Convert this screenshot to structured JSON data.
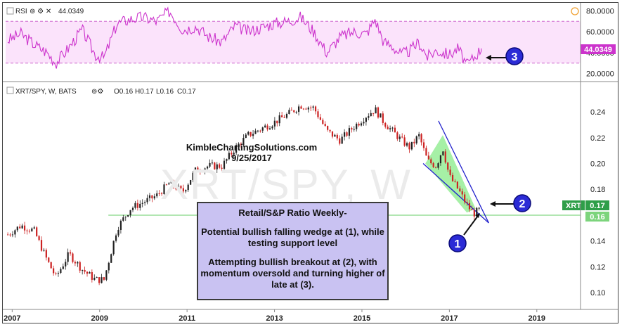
{
  "rsi_panel": {
    "label": "RSI",
    "value_text": "44.0349",
    "badge": "44.0349",
    "ticks": [
      "80.0000",
      "60.0000",
      "40.0000",
      "20.0000"
    ],
    "tick_values": [
      80,
      60,
      40,
      20
    ],
    "upper_band": 70,
    "lower_band": 30,
    "range": [
      15,
      85
    ],
    "color": "#cc33cc",
    "band_fill": "#fbe3fb"
  },
  "main_panel": {
    "legend": "XRT/SPY, W, BATS",
    "open": "O0.16",
    "high": "H0.17",
    "low": "L0.16",
    "close": "C0.17",
    "watermark": "XRT/SPY, W",
    "symbol_badge": "XRT",
    "price_badge": "0.17",
    "support_badge": "0.16",
    "support_level": 0.16,
    "ticks": [
      "0.24",
      "0.22",
      "0.20",
      "0.18",
      "0.16",
      "0.14",
      "0.12",
      "0.10"
    ],
    "tick_values": [
      0.24,
      0.22,
      0.2,
      0.18,
      0.16,
      0.14,
      0.12,
      0.1
    ],
    "range": [
      0.087,
      0.252
    ],
    "x_labels": [
      "2007",
      "2009",
      "2011",
      "2013",
      "2015",
      "2017",
      "2019"
    ],
    "up_color": "#222222",
    "down_color": "#cc2222"
  },
  "brand": {
    "name": "KimbleChartingSolutions.com",
    "date": "9/25/2017"
  },
  "note": {
    "title": "Retail/S&P Ratio Weekly-",
    "line1": "Potential bullish falling wedge at (1), while testing support level",
    "line2": "Attempting bullish breakout at (2), with momentum oversold and turning higher of late at (3)."
  },
  "markers": [
    {
      "id": "1",
      "label": "1"
    },
    {
      "id": "2",
      "label": "2"
    },
    {
      "id": "3",
      "label": "3"
    }
  ],
  "chart_data": {
    "type": "line",
    "title": "",
    "xlabel": "",
    "ylabel": "",
    "x_range": [
      2006.85,
      2020.0
    ],
    "series": [
      {
        "name": "XRT/SPY",
        "x": [
          2006.9,
          2007.2,
          2007.5,
          2007.8,
          2008.0,
          2008.3,
          2008.6,
          2008.9,
          2009.1,
          2009.4,
          2009.7,
          2010.0,
          2010.3,
          2010.6,
          2010.9,
          2011.2,
          2011.5,
          2011.8,
          2012.1,
          2012.4,
          2012.7,
          2013.0,
          2013.3,
          2013.6,
          2013.9,
          2014.2,
          2014.5,
          2014.8,
          2015.1,
          2015.3,
          2015.5,
          2015.7,
          2015.9,
          2016.1,
          2016.3,
          2016.5,
          2016.7,
          2016.85,
          2017.0,
          2017.2,
          2017.4,
          2017.55,
          2017.73
        ],
        "y": [
          0.145,
          0.152,
          0.148,
          0.125,
          0.112,
          0.13,
          0.118,
          0.11,
          0.11,
          0.15,
          0.165,
          0.17,
          0.175,
          0.185,
          0.178,
          0.195,
          0.198,
          0.198,
          0.212,
          0.222,
          0.227,
          0.232,
          0.238,
          0.245,
          0.243,
          0.225,
          0.218,
          0.228,
          0.237,
          0.242,
          0.232,
          0.225,
          0.218,
          0.212,
          0.222,
          0.202,
          0.198,
          0.212,
          0.19,
          0.18,
          0.168,
          0.161,
          0.165
        ]
      },
      {
        "name": "RSI",
        "x": [
          2006.9,
          2007.2,
          2007.5,
          2007.8,
          2008.0,
          2008.3,
          2008.6,
          2008.9,
          2009.1,
          2009.4,
          2009.7,
          2010.0,
          2010.3,
          2010.6,
          2010.9,
          2011.2,
          2011.5,
          2011.8,
          2012.1,
          2012.4,
          2012.7,
          2013.0,
          2013.3,
          2013.6,
          2013.9,
          2014.2,
          2014.5,
          2014.8,
          2015.1,
          2015.3,
          2015.5,
          2015.7,
          2015.9,
          2016.1,
          2016.3,
          2016.5,
          2016.7,
          2016.85,
          2017.0,
          2017.2,
          2017.4,
          2017.55,
          2017.73
        ],
        "y": [
          52,
          58,
          48,
          40,
          30,
          45,
          62,
          38,
          35,
          68,
          72,
          74,
          70,
          80,
          62,
          65,
          55,
          50,
          66,
          60,
          64,
          68,
          70,
          74,
          60,
          40,
          55,
          60,
          58,
          72,
          50,
          46,
          38,
          42,
          50,
          36,
          42,
          40,
          38,
          44,
          28,
          35,
          44
        ]
      }
    ],
    "annotations": [
      "1",
      "2",
      "3"
    ]
  }
}
